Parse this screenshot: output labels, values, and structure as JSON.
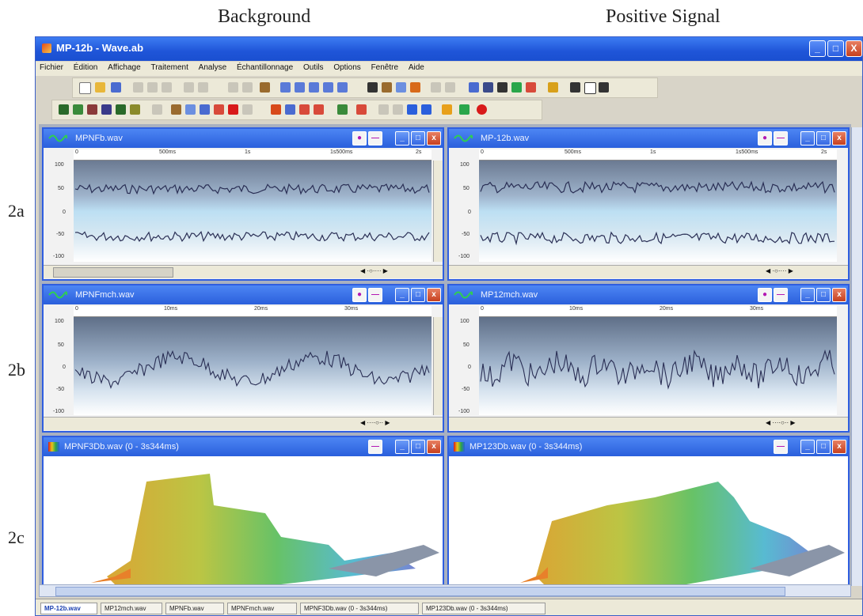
{
  "headings": {
    "left": "Background",
    "right": "Positive Signal"
  },
  "row_labels": [
    "2a",
    "2b",
    "2c"
  ],
  "window": {
    "title": "MP-12b - Wave.ab",
    "controls": {
      "minimize": "_",
      "maximize": "□",
      "close": "X"
    }
  },
  "menu": [
    "Fichier",
    "Édition",
    "Affichage",
    "Traitement",
    "Analyse",
    "Échantillonnage",
    "Outils",
    "Options",
    "Fenêtre",
    "Aide"
  ],
  "child_windows": {
    "a_left": {
      "title": "MPNFb.wav",
      "ruler": [
        "0",
        "500ms",
        "1s",
        "1s500ms",
        "2s"
      ],
      "yticks": [
        "100",
        "50",
        "0",
        "-50",
        "-100"
      ]
    },
    "a_right": {
      "title": "MP-12b.wav",
      "ruler": [
        "0",
        "500ms",
        "1s",
        "1s500ms",
        "2s"
      ],
      "yticks": [
        "100",
        "50",
        "0",
        "-50",
        "-100"
      ]
    },
    "b_left": {
      "title": "MPNFmch.wav",
      "ruler": [
        "0",
        "10ms",
        "20ms",
        "30ms"
      ],
      "yticks": [
        "100",
        "50",
        "0",
        "-50",
        "-100"
      ]
    },
    "b_right": {
      "title": "MP12mch.wav",
      "ruler": [
        "0",
        "10ms",
        "20ms",
        "30ms"
      ],
      "yticks": [
        "100",
        "50",
        "0",
        "-50",
        "-100"
      ]
    },
    "c_left": {
      "title": "MPNF3Db.wav (0 - 3s344ms)"
    },
    "c_right": {
      "title": "MP123Db.wav (0 - 3s344ms)"
    }
  },
  "taskbar_tabs": [
    "MP-12b.wav",
    "MP12mch.wav",
    "MPNFb.wav",
    "MPNFmch.wav",
    "MPNF3Db.wav (0 - 3s344ms)",
    "MP123Db.wav (0 - 3s344ms)"
  ],
  "colors": {
    "title_blue": "#2a5fdc",
    "accent_magenta": "#b318b3",
    "wave_line": "#2a2f55"
  }
}
